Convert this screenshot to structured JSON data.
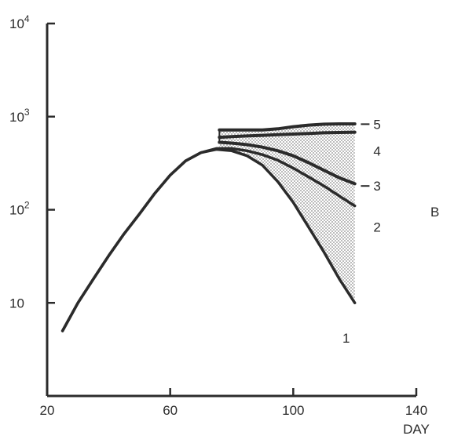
{
  "chart_data": {
    "type": "line",
    "panel_label": "B",
    "xlabel": "DAY",
    "ylabel": "",
    "x_ticks": [
      "20",
      "60",
      "100",
      "140"
    ],
    "y_ticks": [
      {
        "base": "10",
        "exp": ""
      },
      {
        "base": "10",
        "exp": "2"
      },
      {
        "base": "10",
        "exp": "3"
      },
      {
        "base": "10",
        "exp": "4"
      }
    ],
    "xlim": [
      20,
      140
    ],
    "ylim": [
      1,
      10000
    ],
    "y_scale": "log",
    "x_tick_values": [
      20,
      60,
      100,
      140
    ],
    "y_tick_values": [
      10,
      100,
      1000,
      10000
    ],
    "colors": {
      "line": "#2b2b2b",
      "shade": "#9a9a9a"
    },
    "series": [
      {
        "name": "1",
        "x": [
          25,
          30,
          35,
          40,
          45,
          50,
          55,
          60,
          65,
          70,
          75,
          80,
          85,
          90,
          95,
          100,
          105,
          110,
          115,
          120
        ],
        "y": [
          5,
          10,
          18,
          32,
          55,
          90,
          150,
          235,
          335,
          410,
          445,
          430,
          380,
          300,
          200,
          120,
          65,
          35,
          18,
          10
        ]
      },
      {
        "name": "2",
        "x": [
          25,
          30,
          35,
          40,
          45,
          50,
          55,
          60,
          65,
          70,
          75,
          80,
          85,
          90,
          95,
          100,
          105,
          110,
          115,
          120
        ],
        "y": [
          5,
          10,
          18,
          32,
          55,
          90,
          150,
          235,
          335,
          410,
          455,
          455,
          430,
          390,
          340,
          280,
          225,
          180,
          140,
          110
        ]
      },
      {
        "name": "3",
        "x": [
          76,
          80,
          85,
          90,
          95,
          100,
          105,
          110,
          115,
          120
        ],
        "y": [
          530,
          520,
          500,
          470,
          430,
          380,
          320,
          265,
          220,
          190
        ]
      },
      {
        "name": "4",
        "x": [
          76,
          80,
          85,
          90,
          95,
          100,
          105,
          110,
          115,
          120
        ],
        "y": [
          600,
          610,
          620,
          630,
          640,
          650,
          660,
          670,
          675,
          680
        ]
      },
      {
        "name": "5",
        "x": [
          76,
          80,
          85,
          90,
          95,
          100,
          105,
          110,
          115,
          120
        ],
        "y": [
          720,
          720,
          720,
          720,
          740,
          780,
          810,
          830,
          835,
          835
        ]
      }
    ],
    "curve_labels": [
      {
        "text": "1",
        "x": 115,
        "y": 4.2
      },
      {
        "text": "2",
        "x": 123,
        "y": 65
      },
      {
        "text": "3",
        "x": 123,
        "y": 180
      },
      {
        "text": "4",
        "x": 123,
        "y": 430
      },
      {
        "text": "5",
        "x": 123,
        "y": 830
      }
    ]
  }
}
